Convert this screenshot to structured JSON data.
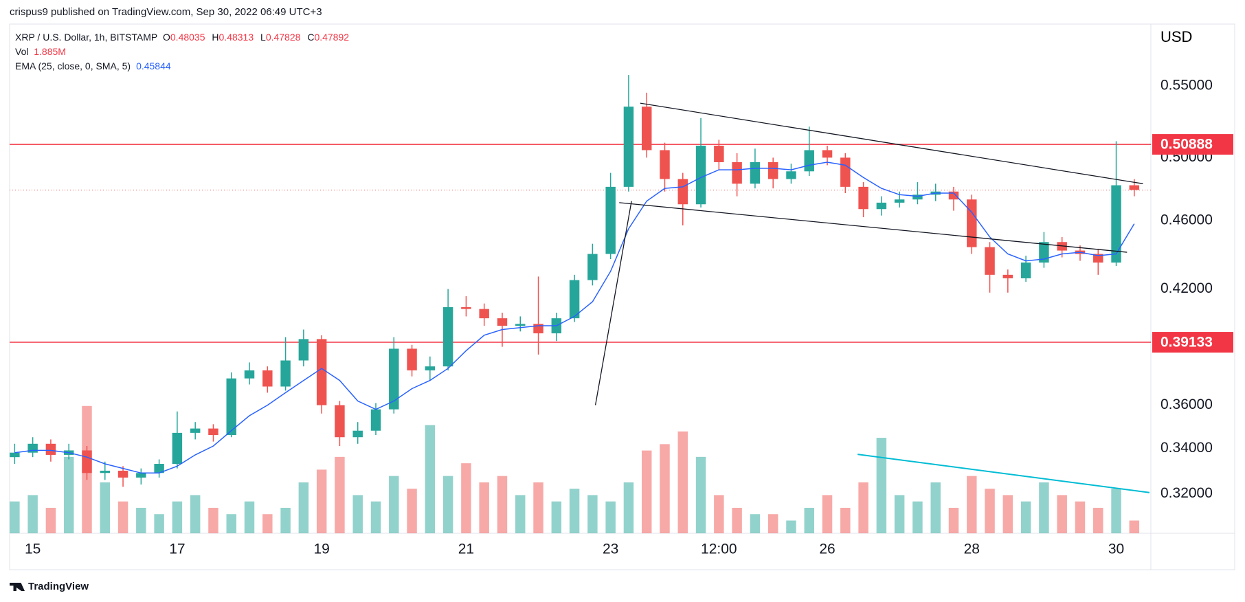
{
  "header": {
    "byline": "crispus9 published on TradingView.com, Sep 30, 2022 06:49 UTC+3"
  },
  "footer": {
    "brand": "TradingView"
  },
  "chart_data": {
    "type": "candlestick",
    "currency": "USD",
    "legend": {
      "series": "XRP / U.S. Dollar, 1h, BITSTAMP",
      "open_label": "O",
      "open": 0.48035,
      "high_label": "H",
      "high": 0.48313,
      "low_label": "L",
      "low": 0.47828,
      "close_label": "C",
      "close": 0.47892,
      "volume_label": "Vol",
      "volume": "1.885M",
      "ema_label": "EMA (25, close, 0, SMA, 5)",
      "ema": 0.45844
    },
    "log_scale": true,
    "xlim": [
      14.68,
      30.48
    ],
    "ylim": [
      0.3037,
      0.597
    ],
    "volume_ylim": [
      0,
      80
    ],
    "xticks": [
      15,
      17,
      19,
      21,
      23,
      {
        "value": 24.5,
        "label": "12:00"
      },
      26,
      28,
      30
    ],
    "yticks": [
      {
        "value": 0.55,
        "label": "0.55000"
      },
      {
        "value": 0.5,
        "label": "0.50000"
      },
      {
        "value": 0.46,
        "label": "0.46000"
      },
      {
        "value": 0.42,
        "label": "0.42000"
      },
      {
        "value": 0.36,
        "label": "0.36000"
      },
      {
        "value": 0.34,
        "label": "0.34000"
      },
      {
        "value": 0.32,
        "label": "0.32000"
      }
    ],
    "up_color": "#26a69a",
    "down_color": "#ef5350",
    "x": [
      14.75,
      15,
      15.25,
      15.5,
      15.75,
      16,
      16.25,
      16.5,
      16.75,
      17,
      17.25,
      17.5,
      17.75,
      18,
      18.25,
      18.5,
      18.75,
      19,
      19.25,
      19.5,
      19.75,
      20,
      20.25,
      20.5,
      20.75,
      21,
      21.25,
      21.5,
      21.75,
      22,
      22.25,
      22.5,
      22.75,
      23,
      23.25,
      23.5,
      23.75,
      24,
      24.25,
      24.5,
      24.75,
      25,
      25.25,
      25.5,
      25.75,
      26,
      26.25,
      26.5,
      26.75,
      27,
      27.25,
      27.5,
      27.75,
      28,
      28.25,
      28.5,
      28.75,
      29,
      29.25,
      29.5,
      29.75,
      30,
      30.25
    ],
    "open": [
      0.336,
      0.338,
      0.342,
      0.337,
      0.339,
      0.329,
      0.33,
      0.327,
      0.329,
      0.333,
      0.347,
      0.349,
      0.346,
      0.373,
      0.377,
      0.369,
      0.382,
      0.393,
      0.36,
      0.345,
      0.348,
      0.358,
      0.388,
      0.377,
      0.379,
      0.41,
      0.409,
      0.404,
      0.4,
      0.401,
      0.396,
      0.404,
      0.425,
      0.44,
      0.481,
      0.535,
      0.505,
      0.486,
      0.47,
      0.508,
      0.497,
      0.483,
      0.497,
      0.486,
      0.491,
      0.505,
      0.5,
      0.481,
      0.467,
      0.471,
      0.473,
      0.476,
      0.478,
      0.473,
      0.444,
      0.428,
      0.426,
      0.435,
      0.447,
      0.442,
      0.44,
      0.435,
      0.482
    ],
    "high": [
      0.342,
      0.345,
      0.344,
      0.342,
      0.341,
      0.334,
      0.332,
      0.331,
      0.335,
      0.357,
      0.352,
      0.351,
      0.376,
      0.381,
      0.379,
      0.394,
      0.398,
      0.395,
      0.362,
      0.352,
      0.361,
      0.394,
      0.39,
      0.384,
      0.42,
      0.416,
      0.412,
      0.407,
      0.405,
      0.427,
      0.407,
      0.428,
      0.446,
      0.49,
      0.558,
      0.545,
      0.51,
      0.49,
      0.527,
      0.512,
      0.503,
      0.506,
      0.5,
      0.496,
      0.521,
      0.508,
      0.503,
      0.484,
      0.475,
      0.478,
      0.484,
      0.483,
      0.481,
      0.476,
      0.447,
      0.431,
      0.439,
      0.453,
      0.45,
      0.445,
      0.443,
      0.511,
      0.486
    ],
    "low": [
      0.333,
      0.336,
      0.334,
      0.335,
      0.326,
      0.326,
      0.323,
      0.324,
      0.327,
      0.331,
      0.344,
      0.343,
      0.345,
      0.37,
      0.366,
      0.367,
      0.379,
      0.356,
      0.341,
      0.342,
      0.346,
      0.356,
      0.374,
      0.372,
      0.377,
      0.405,
      0.4,
      0.389,
      0.397,
      0.385,
      0.392,
      0.402,
      0.422,
      0.437,
      0.478,
      0.5,
      0.478,
      0.457,
      0.468,
      0.492,
      0.475,
      0.48,
      0.48,
      0.483,
      0.488,
      0.495,
      0.477,
      0.462,
      0.463,
      0.468,
      0.47,
      0.472,
      0.466,
      0.44,
      0.418,
      0.418,
      0.424,
      0.432,
      0.438,
      0.436,
      0.428,
      0.433,
      0.475
    ],
    "close": [
      0.338,
      0.342,
      0.337,
      0.339,
      0.329,
      0.33,
      0.327,
      0.329,
      0.333,
      0.347,
      0.349,
      0.346,
      0.373,
      0.377,
      0.369,
      0.382,
      0.393,
      0.36,
      0.345,
      0.348,
      0.358,
      0.388,
      0.377,
      0.379,
      0.41,
      0.409,
      0.404,
      0.4,
      0.401,
      0.396,
      0.404,
      0.425,
      0.44,
      0.481,
      0.535,
      0.505,
      0.486,
      0.47,
      0.508,
      0.497,
      0.483,
      0.497,
      0.486,
      0.491,
      0.505,
      0.5,
      0.481,
      0.467,
      0.471,
      0.473,
      0.476,
      0.478,
      0.473,
      0.444,
      0.428,
      0.426,
      0.435,
      0.447,
      0.442,
      0.44,
      0.435,
      0.482,
      0.479
    ],
    "volume": [
      5,
      6,
      4,
      12,
      20,
      8,
      5,
      4,
      3,
      5,
      6,
      4,
      3,
      5,
      3,
      4,
      8,
      10,
      12,
      6,
      5,
      9,
      7,
      17,
      9,
      11,
      8,
      9,
      6,
      8,
      5,
      7,
      6,
      5,
      8,
      13,
      14,
      16,
      12,
      6,
      4,
      3,
      3,
      2,
      4,
      6,
      4,
      8,
      15,
      6,
      5,
      8,
      4,
      9,
      7,
      6,
      5,
      8,
      6,
      5,
      4,
      7,
      2
    ],
    "ema": {
      "color": "#2962ff",
      "values": [
        0.338,
        0.339,
        0.339,
        0.338,
        0.336,
        0.333,
        0.331,
        0.329,
        0.329,
        0.332,
        0.337,
        0.341,
        0.348,
        0.355,
        0.36,
        0.366,
        0.372,
        0.378,
        0.372,
        0.362,
        0.358,
        0.362,
        0.368,
        0.372,
        0.378,
        0.387,
        0.395,
        0.398,
        0.399,
        0.4,
        0.4,
        0.405,
        0.413,
        0.43,
        0.455,
        0.472,
        0.48,
        0.481,
        0.487,
        0.492,
        0.492,
        0.493,
        0.493,
        0.492,
        0.495,
        0.497,
        0.495,
        0.487,
        0.48,
        0.476,
        0.475,
        0.477,
        0.477,
        0.465,
        0.45,
        0.44,
        0.436,
        0.437,
        0.44,
        0.441,
        0.439,
        0.44,
        0.458
      ]
    },
    "levels": [
      {
        "value": 0.50888,
        "color": "#f23645"
      },
      {
        "value": 0.39133,
        "color": "#f23645"
      }
    ],
    "trendlines": [
      {
        "color": "#131722",
        "x": [
          23.41,
          30.37
        ],
        "y": [
          0.5375,
          0.483
        ]
      },
      {
        "color": "#131722",
        "x": [
          23.12,
          30.15
        ],
        "y": [
          0.471,
          0.441
        ]
      },
      {
        "color": "#131722",
        "x": [
          22.79,
          23.29
        ],
        "y": [
          0.36,
          0.472
        ]
      },
      {
        "color": "#00bcd4",
        "axis": "volume",
        "x": [
          26.42,
          30.46
        ],
        "y": [
          12.4,
          6.4
        ]
      }
    ]
  }
}
